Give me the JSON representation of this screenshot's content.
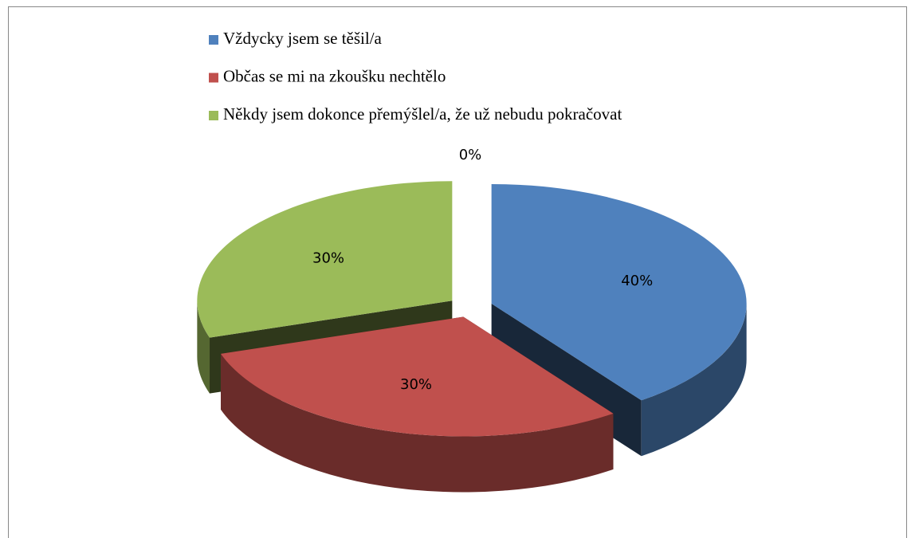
{
  "chart_data": {
    "type": "pie",
    "categories": [
      "Vždycky jsem se těšil/a",
      "Občas se mi na zkoušku nechtělo",
      "Někdy jsem dokonce přemýšlel/a, že už nebudu pokračovat",
      null
    ],
    "values": [
      40,
      30,
      30,
      0
    ],
    "value_labels": [
      "40%",
      "30%",
      "30%",
      "0%"
    ],
    "colors": [
      "#4f81bd",
      "#c0504d",
      "#9bbb59",
      "#8064a2"
    ],
    "legend": "top"
  }
}
